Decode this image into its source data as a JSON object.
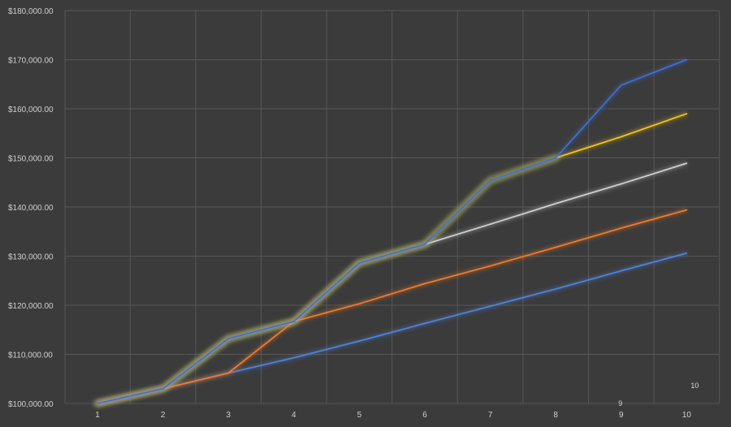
{
  "chart_data": {
    "type": "line",
    "categories": [
      "1",
      "2",
      "3",
      "4",
      "5",
      "6",
      "7",
      "8",
      "9",
      "10"
    ],
    "x": [
      1,
      2,
      3,
      4,
      5,
      6,
      7,
      8,
      9,
      10
    ],
    "ylim": [
      100000,
      180000
    ],
    "yticks": [
      100000,
      110000,
      120000,
      130000,
      140000,
      150000,
      160000,
      170000,
      180000
    ],
    "ytick_labels": [
      "$100,000.00",
      "$110,000.00",
      "$120,000.00",
      "$130,000.00",
      "$140,000.00",
      "$150,000.00",
      "$160,000.00",
      "$170,000.00",
      "$180,000.00"
    ],
    "grid": true,
    "legend": "none",
    "annotations": [
      {
        "text": "9",
        "x": 9
      },
      {
        "text": "10",
        "x": 10
      }
    ],
    "highlight_color": "#9a9a48",
    "series": [
      {
        "color": "#4f83d6",
        "values": [
          100000,
          103000,
          106200,
          109300,
          112700,
          116300,
          119800,
          123300,
          127000,
          130600
        ]
      },
      {
        "color": "#f07a2c",
        "values": [
          100000,
          103000,
          106200,
          116700,
          120300,
          124400,
          128000,
          131800,
          135700,
          139400
        ]
      },
      {
        "color": "#cfcfcf",
        "values": [
          100000,
          103000,
          113200,
          116700,
          128600,
          132400,
          136500,
          140700,
          144700,
          148900
        ]
      },
      {
        "color": "#f2c21b",
        "values": [
          100000,
          103000,
          113200,
          116700,
          128600,
          132400,
          145400,
          150000,
          154300,
          159000
        ]
      },
      {
        "color": "#3f6ed2",
        "values": [
          100000,
          103000,
          113200,
          116700,
          128600,
          132400,
          145400,
          150000,
          164800,
          170000
        ]
      }
    ]
  }
}
